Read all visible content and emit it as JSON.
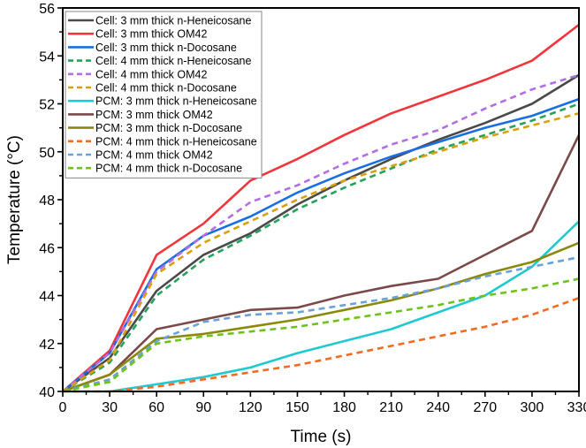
{
  "chart_data": {
    "type": "line",
    "title": "",
    "xlabel": "Time (s)",
    "ylabel": "Temperature (°C)",
    "xlim": [
      0,
      330
    ],
    "ylim": [
      40,
      56
    ],
    "xticks": [
      0,
      30,
      60,
      90,
      120,
      150,
      180,
      210,
      240,
      270,
      300,
      330
    ],
    "yticks": [
      40,
      42,
      44,
      46,
      48,
      50,
      52,
      54,
      56
    ],
    "xtick_labels": [
      "0",
      "30",
      "60",
      "90",
      "120",
      "150",
      "180",
      "210",
      "240",
      "270",
      "300",
      "330"
    ],
    "ytick_labels": [
      "40",
      "42",
      "44",
      "46",
      "48",
      "50",
      "52",
      "54",
      "56"
    ],
    "grid": false,
    "legend_position": "top-left",
    "x": [
      0,
      30,
      60,
      90,
      120,
      150,
      180,
      210,
      240,
      270,
      300,
      330
    ],
    "series": [
      {
        "name": "Cell: 3 mm thick n-Heneicosane",
        "color": "#4a4a4a",
        "style": "solid",
        "values": [
          40.0,
          41.4,
          44.2,
          45.7,
          46.6,
          47.8,
          48.8,
          49.7,
          50.5,
          51.2,
          52.0,
          53.2
        ]
      },
      {
        "name": "Cell: 3 mm thick OM42",
        "color": "#f0363c",
        "style": "solid",
        "values": [
          40.0,
          41.7,
          45.7,
          47.0,
          48.8,
          49.7,
          50.7,
          51.6,
          52.3,
          53.0,
          53.8,
          55.3
        ]
      },
      {
        "name": "Cell: 3 mm thick n-Docosane",
        "color": "#1a6ee0",
        "style": "solid",
        "values": [
          40.0,
          41.6,
          45.1,
          46.5,
          47.3,
          48.3,
          49.1,
          49.8,
          50.4,
          51.0,
          51.5,
          52.2
        ]
      },
      {
        "name": "Cell: 4 mm thick n-Heneicosane",
        "color": "#25a35a",
        "style": "dash",
        "values": [
          40.0,
          41.2,
          44.0,
          45.5,
          46.5,
          47.6,
          48.5,
          49.3,
          50.1,
          50.7,
          51.3,
          52.0
        ]
      },
      {
        "name": "Cell: 4 mm thick OM42",
        "color": "#b36ee6",
        "style": "dash",
        "values": [
          40.0,
          41.6,
          45.0,
          46.5,
          47.9,
          48.6,
          49.5,
          50.3,
          50.9,
          51.8,
          52.6,
          53.2
        ]
      },
      {
        "name": "Cell: 4 mm thick n-Docosane",
        "color": "#d8a00e",
        "style": "dash",
        "values": [
          40.0,
          41.3,
          44.9,
          46.2,
          47.1,
          48.0,
          48.8,
          49.4,
          50.0,
          50.6,
          51.1,
          51.6
        ]
      },
      {
        "name": "PCM: 3 mm thick n-Heneicosane",
        "color": "#1ecad0",
        "style": "solid",
        "values": [
          40.0,
          40.0,
          40.3,
          40.6,
          41.0,
          41.6,
          42.1,
          42.6,
          43.3,
          44.0,
          45.2,
          47.1
        ]
      },
      {
        "name": "PCM: 3 mm thick OM42",
        "color": "#7a4a4a",
        "style": "solid",
        "values": [
          40.0,
          40.7,
          42.6,
          43.0,
          43.4,
          43.5,
          44.0,
          44.4,
          44.7,
          45.7,
          46.7,
          50.7
        ]
      },
      {
        "name": "PCM: 3 mm thick n-Docosane",
        "color": "#8a8a0a",
        "style": "solid",
        "values": [
          40.0,
          40.7,
          42.2,
          42.4,
          42.7,
          43.0,
          43.4,
          43.8,
          44.3,
          44.9,
          45.4,
          46.2
        ]
      },
      {
        "name": "PCM: 4 mm thick n-Heneicosane",
        "color": "#f56a1e",
        "style": "dash",
        "values": [
          40.0,
          40.0,
          40.2,
          40.5,
          40.8,
          41.1,
          41.5,
          41.9,
          42.3,
          42.7,
          43.2,
          43.9
        ]
      },
      {
        "name": "PCM: 4 mm thick OM42",
        "color": "#6aa2d8",
        "style": "dash",
        "values": [
          40.0,
          40.5,
          42.1,
          42.9,
          43.2,
          43.3,
          43.6,
          43.9,
          44.3,
          44.8,
          45.2,
          45.6
        ]
      },
      {
        "name": "PCM: 4 mm thick n-Docosane",
        "color": "#6ec21a",
        "style": "dash",
        "values": [
          40.0,
          40.4,
          42.0,
          42.3,
          42.5,
          42.7,
          43.0,
          43.3,
          43.6,
          44.0,
          44.3,
          44.7
        ]
      }
    ]
  }
}
